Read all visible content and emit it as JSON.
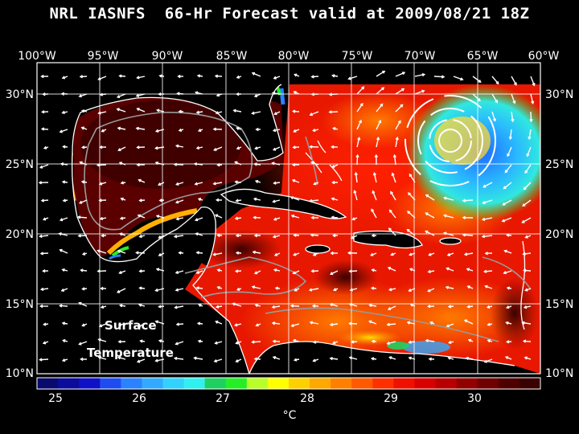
{
  "title": "NRL IASNFS  66-Hr Forecast valid at 2009/08/21 18Z",
  "map": {
    "lon_ticks": [
      "100°W",
      "95°W",
      "90°W",
      "85°W",
      "80°W",
      "75°W",
      "70°W",
      "65°W",
      "60°W"
    ],
    "lat_ticks": [
      "30°N",
      "25°N",
      "20°N",
      "15°N",
      "10°N"
    ],
    "annotation_line1": "Surface",
    "annotation_line2": "Temperature"
  },
  "colorbar": {
    "labels": [
      "25",
      "26",
      "27",
      "28",
      "29",
      "30"
    ],
    "unit": "°C",
    "colors": [
      "#0a0a6e",
      "#0c0c9c",
      "#1010c8",
      "#1e4cf0",
      "#2a82ff",
      "#33aaff",
      "#32d2ff",
      "#30f0f0",
      "#1fd060",
      "#26ee26",
      "#b8ff2a",
      "#ffff00",
      "#ffd000",
      "#ffa800",
      "#ff8000",
      "#ff5a00",
      "#ff3000",
      "#f01000",
      "#d80000",
      "#b80000",
      "#920000",
      "#6e0000",
      "#4e0000",
      "#380000"
    ]
  }
}
